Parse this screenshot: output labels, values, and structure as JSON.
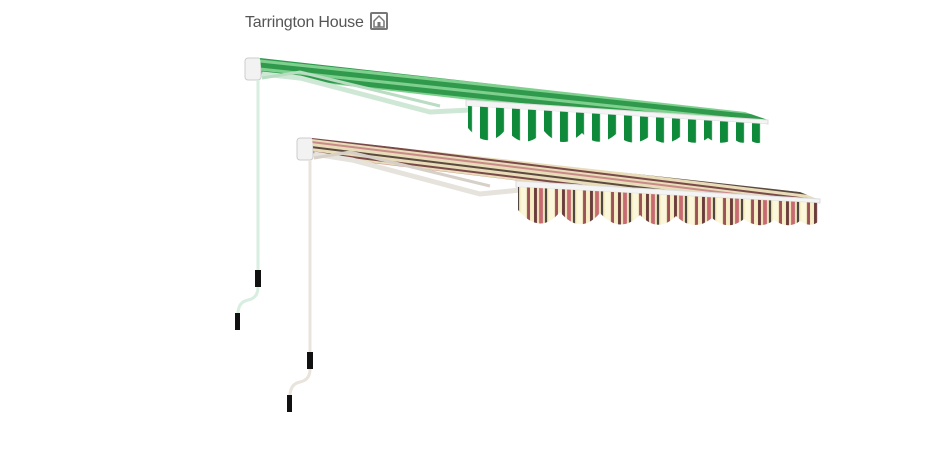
{
  "brand": {
    "name": "Tarrington House"
  }
}
